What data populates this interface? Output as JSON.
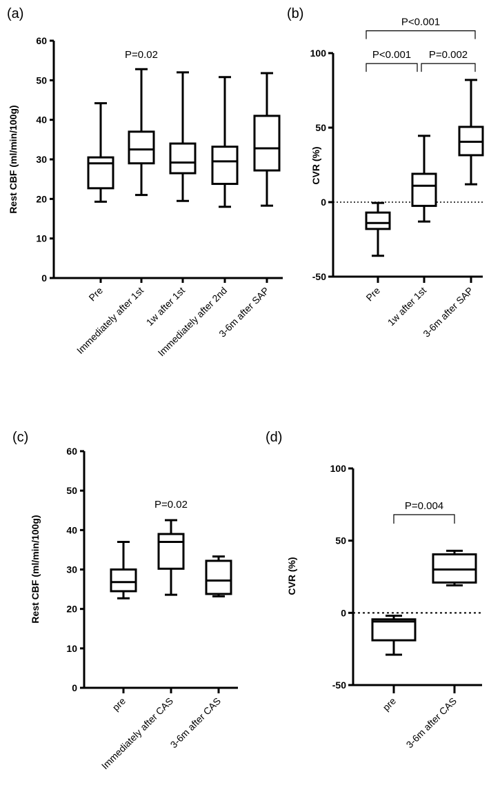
{
  "chart_data": [
    {
      "id": "a",
      "panel_label": "(a)",
      "type": "box",
      "ylabel": "Rest CBF (ml/min/100g)",
      "ylim": [
        0,
        60
      ],
      "yticks": [
        0,
        10,
        20,
        30,
        40,
        50,
        60
      ],
      "categories": [
        "Pre",
        "Immediately after 1st",
        "1w after 1st",
        "Immediately after 2nd",
        "3-6m after SAP"
      ],
      "boxes": [
        {
          "min": 19.3,
          "q1": 22.7,
          "median": 29,
          "q3": 30.5,
          "max": 44.2
        },
        {
          "min": 21,
          "q1": 29,
          "median": 32.5,
          "q3": 37,
          "max": 52.8
        },
        {
          "min": 19.5,
          "q1": 26.5,
          "median": 29.2,
          "q3": 34,
          "max": 52
        },
        {
          "min": 18,
          "q1": 23.8,
          "median": 29.5,
          "q3": 33.2,
          "max": 50.8
        },
        {
          "min": 18.3,
          "q1": 27.2,
          "median": 32.8,
          "q3": 41,
          "max": 51.8
        }
      ],
      "zero_line": false,
      "annotations": [
        {
          "text": "P=0.02",
          "x_index": 1,
          "y": 56.5
        }
      ],
      "brackets": []
    },
    {
      "id": "b",
      "panel_label": "(b)",
      "type": "box",
      "ylabel": "CVR (%)",
      "ylim": [
        -50,
        100
      ],
      "yticks": [
        -50,
        0,
        50,
        100
      ],
      "categories": [
        "Pre",
        "1w after 1st",
        "3-6m after SAP"
      ],
      "boxes": [
        {
          "min": -36,
          "q1": -18,
          "median": -14,
          "q3": -7,
          "max": -0.5
        },
        {
          "min": -13,
          "q1": -2.5,
          "median": 11,
          "q3": 19,
          "max": 44.5
        },
        {
          "min": 12,
          "q1": 31.5,
          "median": 40.5,
          "q3": 50.5,
          "max": 82
        }
      ],
      "zero_line": true,
      "annotations": [],
      "brackets": [
        {
          "from": 0,
          "to": 2,
          "y": 115,
          "text": "P<0.001"
        },
        {
          "from": 0,
          "to": 1,
          "y": 93,
          "text": "P<0.001"
        },
        {
          "from": 1,
          "to": 2,
          "y": 93,
          "text": "P=0.002"
        }
      ]
    },
    {
      "id": "c",
      "panel_label": "(c)",
      "type": "box",
      "ylabel": "Rest CBF (ml/min/100g)",
      "ylim": [
        0,
        60
      ],
      "yticks": [
        0,
        10,
        20,
        30,
        40,
        50,
        60
      ],
      "categories": [
        "pre",
        "Immediately after CAS",
        "3-6m after CAS"
      ],
      "boxes": [
        {
          "min": 22.7,
          "q1": 24.5,
          "median": 26.8,
          "q3": 30,
          "max": 37
        },
        {
          "min": 23.6,
          "q1": 30.2,
          "median": 37,
          "q3": 39,
          "max": 42.5
        },
        {
          "min": 23.2,
          "q1": 23.8,
          "median": 27.2,
          "q3": 32.2,
          "max": 33.3
        }
      ],
      "zero_line": false,
      "annotations": [
        {
          "text": "P=0.02",
          "x_index": 1,
          "y": 46.5
        }
      ],
      "brackets": []
    },
    {
      "id": "d",
      "panel_label": "(d)",
      "type": "box",
      "ylabel": "CVR (%)",
      "ylim": [
        -50,
        100
      ],
      "yticks": [
        -50,
        0,
        50,
        100
      ],
      "categories": [
        "pre",
        "3-6m after CAS"
      ],
      "boxes": [
        {
          "min": -29,
          "q1": -19,
          "median": -6,
          "q3": -4.5,
          "max": -2
        },
        {
          "min": 19,
          "q1": 21,
          "median": 30,
          "q3": 40.5,
          "max": 43
        }
      ],
      "zero_line": true,
      "annotations": [],
      "brackets": [
        {
          "from": 0,
          "to": 1,
          "y": 68,
          "text": "P=0.004"
        }
      ]
    }
  ]
}
